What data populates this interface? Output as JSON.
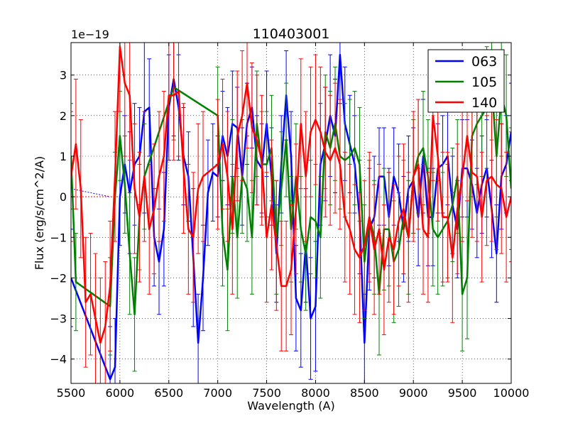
{
  "chart_data": {
    "type": "line",
    "title": "110403001",
    "xlabel": "Wavelength (A)",
    "ylabel": "Flux (erg/s/cm^2/A)",
    "y_offset_label": "1e−19",
    "xlim": [
      5500,
      10000
    ],
    "ylim": [
      -4.6,
      3.8
    ],
    "xticks": [
      5500,
      6000,
      6500,
      7000,
      7500,
      8000,
      8500,
      9000,
      9500,
      10000
    ],
    "xtick_labels": [
      "5500",
      "6000",
      "6500",
      "7000",
      "7500",
      "8000",
      "8500",
      "9000",
      "9500",
      "10000"
    ],
    "yticks": [
      -4,
      -3,
      -2,
      -1,
      0,
      1,
      2,
      3
    ],
    "ytick_labels": [
      "−4",
      "−3",
      "−2",
      "−1",
      "0",
      "1",
      "2",
      "3"
    ],
    "grid": true,
    "legend_position": "top-right",
    "series": [
      {
        "name": "063",
        "color": "#0000ff",
        "x": [
          5500,
          5900,
          5950,
          6000,
          6050,
          6100,
          6150,
          6200,
          6250,
          6300,
          6350,
          6400,
          6450,
          6500,
          6550,
          6600,
          6650,
          6700,
          6750,
          6800,
          6850,
          6900,
          6950,
          7000,
          7050,
          7100,
          7150,
          7200,
          7250,
          7300,
          7350,
          7400,
          7450,
          7500,
          7550,
          7600,
          7650,
          7700,
          7750,
          7800,
          7850,
          7900,
          7950,
          8000,
          8050,
          8100,
          8150,
          8200,
          8250,
          8300,
          8350,
          8400,
          8450,
          8500,
          8550,
          8600,
          8650,
          8700,
          8750,
          8800,
          8850,
          8900,
          8950,
          9000,
          9050,
          9100,
          9150,
          9200,
          9250,
          9300,
          9350,
          9400,
          9450,
          9500,
          9550,
          9600,
          9650,
          9700,
          9750,
          9800,
          9850,
          9900,
          9950,
          10000
        ],
        "y": [
          -2.0,
          -4.5,
          -4.2,
          0.0,
          0.8,
          0.1,
          0.8,
          1.0,
          2.1,
          2.2,
          -1.0,
          -1.6,
          -0.8,
          2.2,
          2.9,
          2.2,
          1.0,
          0.5,
          -1.5,
          -3.6,
          -2.0,
          0.1,
          0.6,
          0.5,
          1.5,
          1.0,
          1.8,
          1.7,
          0.5,
          1.8,
          2.2,
          0.9,
          0.7,
          1.8,
          0.5,
          -1.4,
          0.8,
          2.5,
          1.0,
          -2.5,
          -2.8,
          -1.2,
          -3.0,
          -2.7,
          0.8,
          1.3,
          2.0,
          1.5,
          3.5,
          1.8,
          1.3,
          0.8,
          -0.5,
          -3.6,
          -0.8,
          -0.5,
          0.5,
          0.5,
          -0.5,
          0.5,
          0.1,
          -0.8,
          0.2,
          0.4,
          -0.5,
          1.0,
          -0.5,
          -0.5,
          0.7,
          0.8,
          1.0,
          -0.2,
          -0.8,
          0.7,
          0.7,
          0.3,
          -0.4,
          0.3,
          0.7,
          -0.3,
          -1.4,
          0.5,
          0.8,
          1.6
        ],
        "err": [
          1.2,
          1.3,
          1.2,
          1.2,
          1.2,
          1.5,
          1.5,
          1.2,
          2.5,
          1.2,
          1.2,
          1.3,
          1.4,
          1.3,
          1.4,
          1.3,
          1.2,
          1.1,
          1.7,
          1.2,
          1.3,
          1.3,
          1.2,
          1.0,
          1.1,
          1.2,
          1.3,
          1.0,
          1.2,
          1.0,
          1.0,
          1.1,
          1.1,
          1.3,
          1.2,
          1.2,
          1.2,
          1.1,
          1.1,
          1.3,
          1.4,
          1.4,
          1.5,
          1.6,
          1.5,
          1.4,
          1.5,
          1.4,
          1.2,
          1.4,
          1.2,
          1.2,
          1.4,
          1.2,
          1.5,
          1.5,
          1.2,
          1.2,
          1.2,
          1.2,
          1.2,
          1.3,
          1.3,
          1.3,
          1.2,
          1.4,
          1.2,
          1.2,
          1.1,
          1.2,
          1.2,
          1.2,
          1.2,
          1.2,
          1.2,
          1.1,
          1.1,
          1.2,
          1.2,
          1.2,
          1.2,
          1.3,
          1.2,
          1.2
        ]
      },
      {
        "name": "105",
        "color": "#008000",
        "x": [
          5500,
          5550,
          5900,
          5950,
          6000,
          6050,
          6100,
          6150,
          6200,
          6250,
          6550,
          7000,
          7050,
          7100,
          7150,
          7200,
          7250,
          7300,
          7350,
          7400,
          7450,
          7500,
          7550,
          7600,
          7650,
          7700,
          7750,
          7800,
          7850,
          7900,
          7950,
          8000,
          8050,
          8100,
          8150,
          8200,
          8250,
          8300,
          8350,
          8400,
          8450,
          8500,
          8550,
          8600,
          8650,
          8700,
          8750,
          8800,
          8850,
          8900,
          8950,
          9000,
          9050,
          9100,
          9150,
          9200,
          9250,
          9300,
          9350,
          9400,
          9450,
          9500,
          9550,
          9600,
          9650,
          9700,
          9750,
          9800,
          9850,
          9900,
          9950,
          10000
        ],
        "y": [
          1.0,
          -2.1,
          -2.7,
          0.0,
          1.5,
          0.3,
          -1.4,
          -2.9,
          -0.5,
          0.5,
          2.7,
          2.0,
          -0.9,
          -1.8,
          0.5,
          -1.0,
          0.5,
          0.2,
          -1.0,
          1.8,
          0.8,
          0.8,
          1.2,
          -1.0,
          0.2,
          1.4,
          -0.8,
          0.5,
          -0.8,
          -1.4,
          -0.5,
          -0.6,
          -1.0,
          1.6,
          1.2,
          1.8,
          1.0,
          0.9,
          1.0,
          1.2,
          0.8,
          -1.6,
          -0.5,
          -1.0,
          -2.4,
          -0.8,
          -0.8,
          -1.6,
          -1.3,
          -0.5,
          -1.0,
          0.5,
          1.0,
          1.2,
          0.5,
          -0.8,
          -1.0,
          -0.8,
          -0.6,
          -0.2,
          0.5,
          -2.4,
          -2.0,
          1.5,
          1.8,
          2.0,
          2.2,
          2.8,
          1.0,
          2.5,
          2.0,
          0.2
        ],
        "err": [
          1.3,
          1.2,
          1.2,
          1.1,
          1.1,
          1.2,
          1.5,
          1.4,
          1.3,
          1.3,
          1.3,
          1.2,
          1.3,
          1.5,
          1.4,
          1.5,
          1.4,
          1.3,
          1.4,
          1.3,
          1.3,
          1.3,
          1.3,
          1.4,
          1.4,
          1.4,
          1.3,
          1.3,
          1.3,
          1.4,
          1.4,
          1.4,
          1.5,
          1.4,
          1.4,
          1.4,
          1.3,
          1.4,
          1.4,
          1.4,
          1.4,
          1.4,
          1.4,
          1.4,
          1.5,
          1.5,
          1.4,
          1.5,
          1.4,
          1.4,
          1.4,
          1.4,
          1.4,
          1.4,
          1.4,
          1.4,
          1.4,
          1.4,
          1.4,
          1.4,
          1.4,
          1.4,
          1.5,
          1.5,
          1.5,
          1.5,
          1.5,
          1.4,
          1.5,
          1.5,
          1.5,
          1.5
        ]
      },
      {
        "name": "140",
        "color": "#ff0000",
        "x": [
          5500,
          5550,
          5600,
          5650,
          5700,
          5750,
          5800,
          5850,
          5900,
          5950,
          6000,
          6050,
          6100,
          6150,
          6200,
          6250,
          6300,
          6350,
          6400,
          6450,
          6500,
          6550,
          6600,
          6650,
          6700,
          6750,
          6800,
          6850,
          7000,
          7050,
          7100,
          7150,
          7200,
          7250,
          7300,
          7350,
          7400,
          7450,
          7500,
          7550,
          7600,
          7650,
          7700,
          7750,
          7800,
          7850,
          7900,
          7950,
          8000,
          8050,
          8100,
          8150,
          8200,
          8250,
          8300,
          8350,
          8400,
          8450,
          8500,
          8550,
          8600,
          8650,
          8700,
          8750,
          8800,
          8850,
          8900,
          8950,
          9000,
          9050,
          9100,
          9150,
          9200,
          9250,
          9300,
          9350,
          9400,
          9450,
          9500,
          9550,
          9600,
          9650,
          9700,
          9750,
          9800,
          9850,
          9900,
          9950,
          10000
        ],
        "y": [
          0.5,
          1.3,
          0.2,
          -2.6,
          -2.4,
          -3.0,
          -3.6,
          -3.2,
          -2.2,
          0.5,
          3.7,
          2.8,
          2.5,
          0.2,
          -0.5,
          0.5,
          -0.8,
          -0.3,
          0.5,
          1.0,
          2.5,
          2.5,
          2.6,
          0.7,
          -0.8,
          -1.0,
          0.2,
          0.5,
          0.8,
          1.3,
          0.5,
          -0.8,
          1.5,
          2.0,
          2.8,
          1.7,
          1.4,
          0.9,
          -1.0,
          -0.2,
          -1.2,
          -2.2,
          -2.2,
          -1.8,
          -0.3,
          1.8,
          0.5,
          1.6,
          1.9,
          1.6,
          1.1,
          0.9,
          1.2,
          0.8,
          -0.5,
          -0.8,
          -1.3,
          -1.5,
          -1.2,
          -0.5,
          -1.3,
          -0.8,
          -1.8,
          -1.0,
          -1.3,
          -0.6,
          -0.3,
          -1.0,
          0.5,
          0.8,
          -0.8,
          -1.0,
          2.0,
          1.0,
          -0.5,
          -0.5,
          -1.5,
          -0.3,
          0.5,
          1.5,
          0.6,
          0.5,
          -0.5,
          0.4,
          0.5,
          0.3,
          0.2,
          -0.5,
          0.0
        ],
        "err": [
          1.6,
          1.6,
          1.7,
          1.6,
          1.5,
          1.6,
          1.6,
          1.6,
          1.6,
          1.6,
          1.6,
          1.8,
          1.6,
          1.6,
          1.6,
          1.6,
          1.6,
          1.6,
          1.6,
          1.6,
          1.6,
          1.6,
          1.6,
          1.6,
          1.6,
          1.6,
          1.6,
          1.6,
          1.6,
          1.6,
          1.6,
          1.6,
          1.6,
          1.6,
          1.6,
          1.6,
          1.6,
          1.6,
          1.6,
          1.6,
          1.6,
          1.6,
          1.6,
          1.6,
          1.6,
          1.6,
          1.6,
          1.6,
          1.6,
          1.6,
          1.6,
          1.6,
          1.6,
          1.6,
          1.6,
          1.6,
          1.6,
          1.6,
          1.6,
          1.6,
          1.6,
          1.6,
          1.6,
          1.6,
          1.6,
          1.6,
          1.6,
          1.6,
          1.6,
          1.6,
          1.6,
          1.6,
          1.6,
          1.6,
          1.6,
          1.6,
          1.6,
          1.6,
          1.6,
          1.6,
          1.6,
          1.6,
          1.6,
          1.6,
          1.6,
          1.6,
          1.6,
          1.6,
          1.6
        ]
      }
    ],
    "reference_lines": [
      {
        "name": "blue-dotted",
        "color": "#0000ff",
        "x": [
          5500,
          5900
        ],
        "y": [
          0.2,
          0.0
        ]
      },
      {
        "name": "red-dotted",
        "color": "#ff0000",
        "x": [
          5500,
          6000
        ],
        "y": [
          0.0,
          0.0
        ]
      }
    ]
  }
}
